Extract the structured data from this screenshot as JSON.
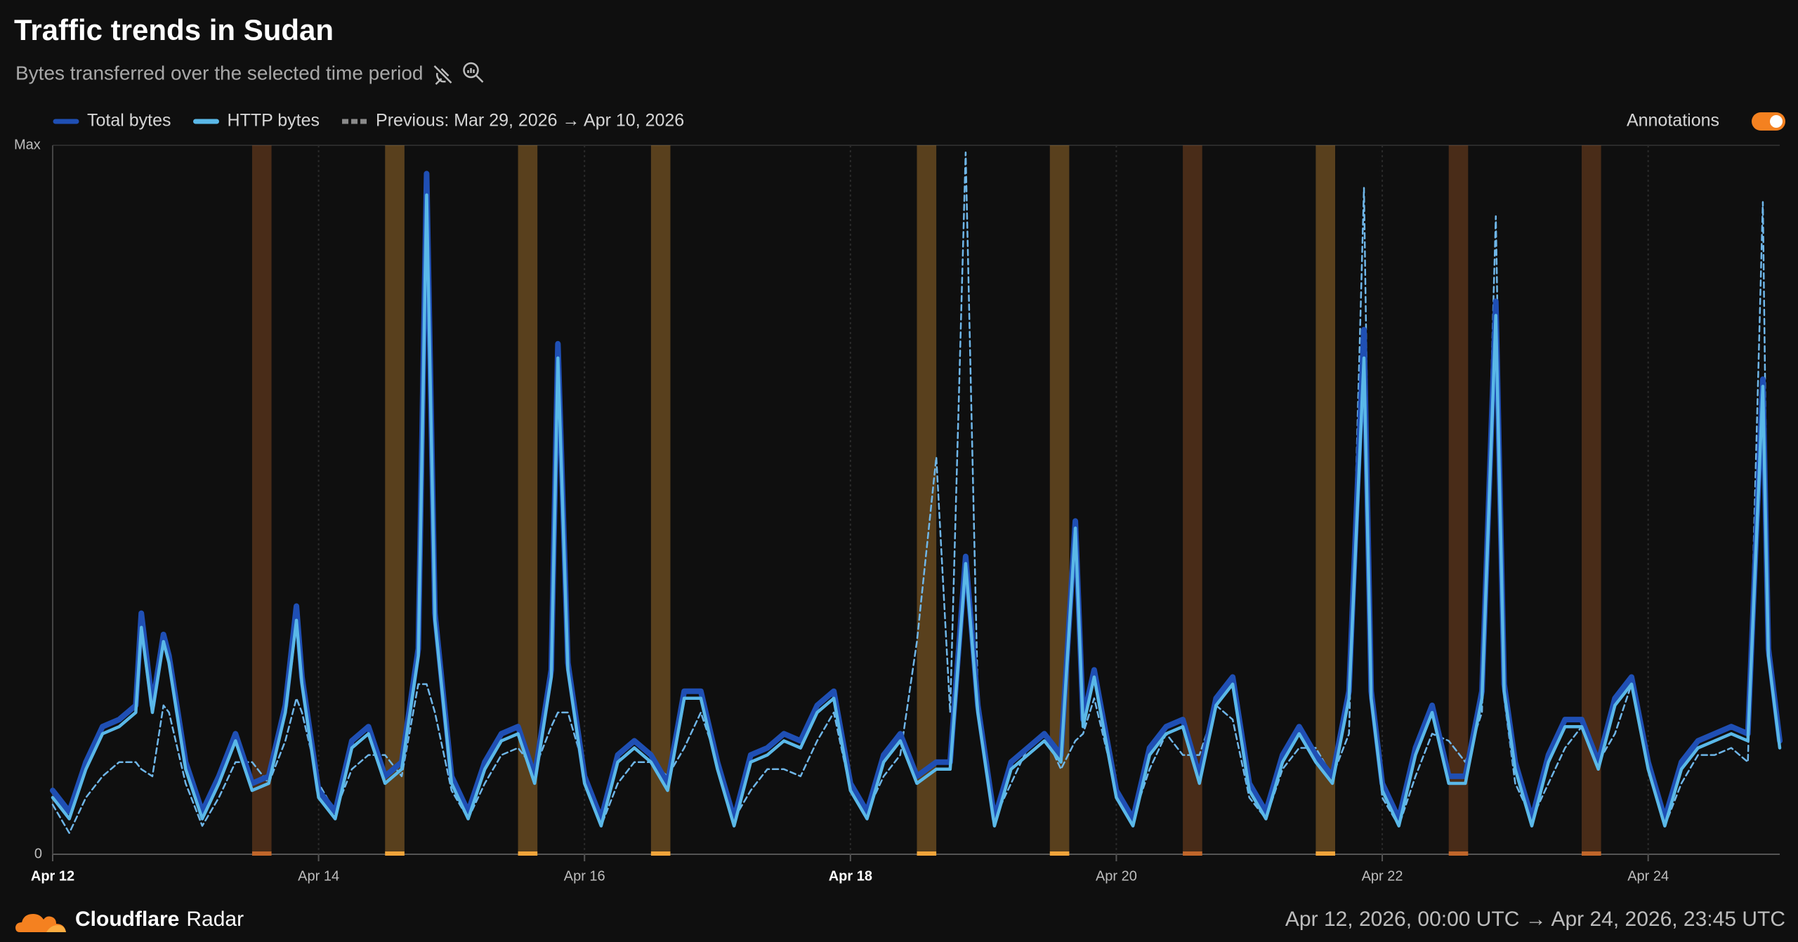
{
  "chart_data": {
    "type": "line",
    "title": "Traffic trends in Sudan",
    "subtitle": "Bytes transferred over the selected time period",
    "annotations_label": "Annotations",
    "annotations_on": true,
    "x": [
      0,
      3,
      6,
      9,
      12,
      15,
      16,
      18,
      20,
      21,
      24,
      27,
      30,
      33,
      36,
      39,
      42,
      44,
      45,
      48,
      51,
      54,
      57,
      60,
      63,
      66,
      67.5,
      69,
      72,
      75,
      78,
      81,
      84,
      87,
      90,
      91.2,
      93,
      96,
      99,
      102,
      105,
      108,
      111,
      114,
      117,
      120,
      123,
      126,
      129,
      132,
      135,
      138,
      141,
      144,
      147,
      150,
      153,
      156,
      159.5,
      162,
      164.8,
      167,
      170,
      173,
      176,
      179,
      182,
      184.6,
      186,
      188,
      192,
      195,
      198,
      201,
      204,
      207,
      210,
      213,
      216,
      219,
      222,
      225,
      228,
      231,
      234,
      236.7,
      238,
      240,
      243,
      246,
      249,
      252,
      255,
      258,
      260.5,
      262,
      264,
      267,
      270,
      273,
      276,
      279,
      282,
      285,
      288,
      291,
      294,
      297,
      300,
      303,
      306,
      308.7,
      309.7,
      311.75
    ],
    "series": [
      {
        "name": "Previous: Mar 29, 2026 → Apr 10, 2026",
        "color": "#6fb6e8",
        "dashed": true,
        "values": [
          0.07,
          0.03,
          0.08,
          0.11,
          0.13,
          0.13,
          0.12,
          0.11,
          0.21,
          0.2,
          0.1,
          0.04,
          0.08,
          0.13,
          0.13,
          0.1,
          0.16,
          0.22,
          0.2,
          0.1,
          0.06,
          0.12,
          0.14,
          0.14,
          0.11,
          0.24,
          0.24,
          0.2,
          0.09,
          0.05,
          0.1,
          0.14,
          0.15,
          0.12,
          0.18,
          0.2,
          0.2,
          0.12,
          0.04,
          0.1,
          0.13,
          0.13,
          0.11,
          0.15,
          0.2,
          0.13,
          0.05,
          0.09,
          0.12,
          0.12,
          0.11,
          0.16,
          0.2,
          0.09,
          0.06,
          0.11,
          0.14,
          0.3,
          0.56,
          0.2,
          0.99,
          0.22,
          0.05,
          0.1,
          0.15,
          0.17,
          0.12,
          0.16,
          0.17,
          0.22,
          0.09,
          0.05,
          0.12,
          0.17,
          0.14,
          0.14,
          0.21,
          0.19,
          0.08,
          0.05,
          0.12,
          0.15,
          0.15,
          0.11,
          0.17,
          0.94,
          0.25,
          0.08,
          0.04,
          0.11,
          0.17,
          0.16,
          0.13,
          0.2,
          0.9,
          0.22,
          0.1,
          0.05,
          0.1,
          0.15,
          0.18,
          0.13,
          0.17,
          0.24,
          0.13,
          0.04,
          0.1,
          0.14,
          0.14,
          0.15,
          0.13,
          0.92,
          0.3,
          0.15
        ]
      },
      {
        "name": "Total bytes",
        "color": "#1f4fb4",
        "values": [
          0.09,
          0.06,
          0.13,
          0.18,
          0.19,
          0.21,
          0.34,
          0.21,
          0.31,
          0.28,
          0.13,
          0.06,
          0.11,
          0.17,
          0.1,
          0.11,
          0.21,
          0.35,
          0.25,
          0.09,
          0.06,
          0.16,
          0.18,
          0.11,
          0.13,
          0.29,
          0.96,
          0.34,
          0.11,
          0.06,
          0.13,
          0.17,
          0.18,
          0.11,
          0.26,
          0.72,
          0.27,
          0.11,
          0.05,
          0.14,
          0.16,
          0.14,
          0.1,
          0.23,
          0.23,
          0.13,
          0.05,
          0.14,
          0.15,
          0.17,
          0.16,
          0.21,
          0.23,
          0.1,
          0.06,
          0.14,
          0.17,
          0.11,
          0.13,
          0.13,
          0.42,
          0.21,
          0.05,
          0.13,
          0.15,
          0.17,
          0.14,
          0.47,
          0.19,
          0.26,
          0.09,
          0.05,
          0.15,
          0.18,
          0.19,
          0.11,
          0.22,
          0.25,
          0.1,
          0.06,
          0.14,
          0.18,
          0.14,
          0.11,
          0.23,
          0.74,
          0.23,
          0.1,
          0.05,
          0.15,
          0.21,
          0.11,
          0.11,
          0.23,
          0.78,
          0.24,
          0.13,
          0.05,
          0.14,
          0.19,
          0.19,
          0.13,
          0.22,
          0.25,
          0.13,
          0.05,
          0.13,
          0.16,
          0.17,
          0.18,
          0.17,
          0.67,
          0.29,
          0.16
        ]
      },
      {
        "name": "HTTP bytes",
        "color": "#5ab8e8",
        "values": [
          0.08,
          0.05,
          0.12,
          0.17,
          0.18,
          0.2,
          0.32,
          0.2,
          0.3,
          0.27,
          0.12,
          0.05,
          0.1,
          0.16,
          0.09,
          0.1,
          0.2,
          0.33,
          0.24,
          0.08,
          0.05,
          0.15,
          0.17,
          0.1,
          0.12,
          0.28,
          0.93,
          0.33,
          0.1,
          0.05,
          0.12,
          0.16,
          0.17,
          0.1,
          0.25,
          0.7,
          0.26,
          0.1,
          0.04,
          0.13,
          0.15,
          0.13,
          0.09,
          0.22,
          0.22,
          0.12,
          0.04,
          0.13,
          0.14,
          0.16,
          0.15,
          0.2,
          0.22,
          0.09,
          0.05,
          0.13,
          0.16,
          0.1,
          0.12,
          0.12,
          0.41,
          0.2,
          0.04,
          0.12,
          0.14,
          0.16,
          0.13,
          0.46,
          0.18,
          0.25,
          0.08,
          0.04,
          0.14,
          0.17,
          0.18,
          0.1,
          0.21,
          0.24,
          0.09,
          0.05,
          0.13,
          0.17,
          0.13,
          0.1,
          0.22,
          0.7,
          0.22,
          0.09,
          0.04,
          0.14,
          0.2,
          0.1,
          0.1,
          0.22,
          0.76,
          0.23,
          0.12,
          0.04,
          0.13,
          0.18,
          0.18,
          0.12,
          0.21,
          0.24,
          0.12,
          0.04,
          0.12,
          0.15,
          0.16,
          0.17,
          0.16,
          0.66,
          0.28,
          0.15
        ]
      }
    ],
    "annotations": [
      {
        "start": 36,
        "end": 39.5,
        "color": "#c0662a"
      },
      {
        "start": 60,
        "end": 63.5,
        "color": "#f0a43a"
      },
      {
        "start": 84,
        "end": 87.5,
        "color": "#f0a43a"
      },
      {
        "start": 108,
        "end": 111.5,
        "color": "#f0a43a"
      },
      {
        "start": 156,
        "end": 159.5,
        "color": "#f0a43a"
      },
      {
        "start": 180,
        "end": 183.5,
        "color": "#f0a43a"
      },
      {
        "start": 204,
        "end": 207.5,
        "color": "#c0662a"
      },
      {
        "start": 228,
        "end": 231.5,
        "color": "#f0a43a"
      },
      {
        "start": 252,
        "end": 255.5,
        "color": "#c0662a"
      },
      {
        "start": 276,
        "end": 279.5,
        "color": "#c0662a"
      }
    ],
    "xlim": [
      0,
      311.75
    ],
    "xticks": [
      {
        "value": 0,
        "label": "Apr 12",
        "bold": true
      },
      {
        "value": 48,
        "label": "Apr 14"
      },
      {
        "value": 96,
        "label": "Apr 16"
      },
      {
        "value": 144,
        "label": "Apr 18",
        "bold": true
      },
      {
        "value": 192,
        "label": "Apr 20"
      },
      {
        "value": 240,
        "label": "Apr 22"
      },
      {
        "value": 288,
        "label": "Apr 24"
      }
    ],
    "ylim": [
      0,
      1
    ],
    "yticks": [
      0,
      {
        "value": 1,
        "label": "Max"
      }
    ],
    "grid": true
  },
  "footer": {
    "brand": "Cloudflare",
    "product": "Radar",
    "range": "Apr 12, 2026, 00:00 UTC → Apr 24, 2026, 23:45 UTC"
  }
}
